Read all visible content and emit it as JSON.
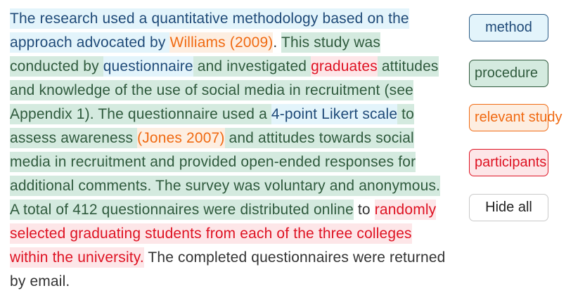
{
  "passage": {
    "segments": [
      {
        "category": "method",
        "text": "The research used a quantitative methodology based on the approach advocated by "
      },
      {
        "category": "relevant-study",
        "text": "Williams (2009)"
      },
      {
        "category": "plain",
        "text": ". "
      },
      {
        "category": "procedure",
        "text": "This study was conducted by "
      },
      {
        "category": "method",
        "text": "questionnaire"
      },
      {
        "category": "procedure",
        "text": " and investigated "
      },
      {
        "category": "participants",
        "text": "graduates"
      },
      {
        "category": "procedure",
        "text": " attitudes and knowledge of the use of social media in recruitment (see Appendix 1). The questionnaire used a "
      },
      {
        "category": "method",
        "text": "4-point Likert scale"
      },
      {
        "category": "procedure",
        "text": " to assess awareness "
      },
      {
        "category": "relevant-study",
        "text": "(Jones 2007)"
      },
      {
        "category": "procedure",
        "text": " and attitudes towards social media in recruitment and provided open-ended responses for additional comments. The survey was voluntary and anonymous. A total of 412 questionnaires were distributed online"
      },
      {
        "category": "plain",
        "text": " to "
      },
      {
        "category": "participants",
        "text": "randomly selected graduating students from each of the three colleges within the university."
      },
      {
        "category": "plain",
        "text": " The completed questionnaires were returned by email."
      }
    ]
  },
  "legend": {
    "method_label": "method",
    "procedure_label": "procedure",
    "relevant_study_label": "relevant study",
    "participants_label": "participants",
    "hide_all_label": "Hide all"
  },
  "colors": {
    "method_bg": "#e3f4fb",
    "method_text": "#1f4a78",
    "procedure_bg": "#d4eadf",
    "procedure_text": "#2f5a3d",
    "relevant_study_bg": "#fdeee1",
    "relevant_study_text": "#f06a12",
    "participants_bg": "#fde6e8",
    "participants_text": "#de1222"
  }
}
